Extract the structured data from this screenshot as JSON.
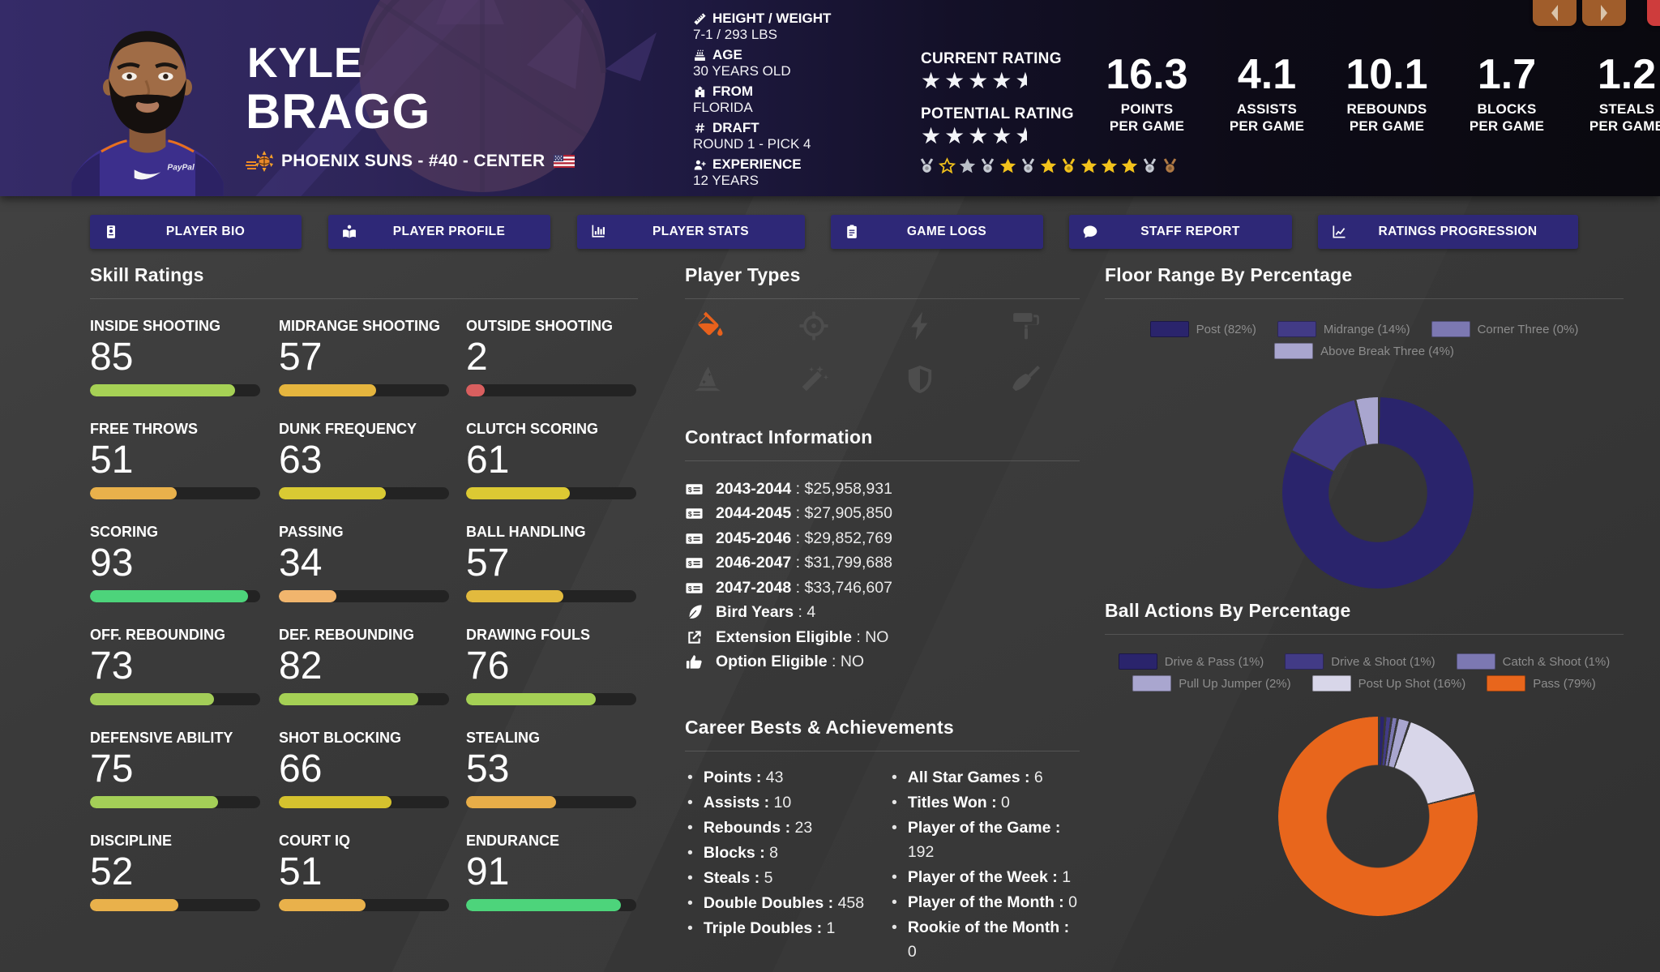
{
  "header": {
    "first_name": "KYLE",
    "last_name": "BRAGG",
    "team_line": "PHOENIX SUNS - #40 - CENTER",
    "bio_items": [
      {
        "icon": "ruler-icon",
        "label": "HEIGHT / WEIGHT",
        "value": "7-1 / 293 LBS"
      },
      {
        "icon": "birthday-cake-icon",
        "label": "AGE",
        "value": "30 YEARS OLD"
      },
      {
        "icon": "school-icon",
        "label": "FROM",
        "value": "FLORIDA"
      },
      {
        "icon": "hashtag-icon",
        "label": "DRAFT",
        "value": "ROUND 1 - PICK 4"
      },
      {
        "icon": "user-plus-icon",
        "label": "EXPERIENCE",
        "value": "12 YEARS"
      }
    ],
    "current_rating_label": "CURRENT RATING",
    "current_rating_stars": 4.5,
    "potential_rating_label": "POTENTIAL RATING",
    "potential_rating_stars": 4.5,
    "awards": [
      {
        "type": "medal",
        "tone": "silver"
      },
      {
        "type": "star-outline",
        "tone": "gold"
      },
      {
        "type": "star",
        "tone": "silver"
      },
      {
        "type": "medal",
        "tone": "silver"
      },
      {
        "type": "star",
        "tone": "gold"
      },
      {
        "type": "medal",
        "tone": "silver"
      },
      {
        "type": "star",
        "tone": "gold"
      },
      {
        "type": "medal",
        "tone": "gold"
      },
      {
        "type": "star",
        "tone": "gold"
      },
      {
        "type": "star",
        "tone": "gold"
      },
      {
        "type": "star",
        "tone": "gold"
      },
      {
        "type": "medal",
        "tone": "silver"
      },
      {
        "type": "medal",
        "tone": "bronze"
      }
    ],
    "stats": [
      {
        "value": "16.3",
        "label1": "POINTS",
        "label2": "PER GAME"
      },
      {
        "value": "4.1",
        "label1": "ASSISTS",
        "label2": "PER GAME"
      },
      {
        "value": "10.1",
        "label1": "REBOUNDS",
        "label2": "PER GAME"
      },
      {
        "value": "1.7",
        "label1": "BLOCKS",
        "label2": "PER GAME"
      },
      {
        "value": "1.2",
        "label1": "STEALS",
        "label2": "PER GAME"
      }
    ]
  },
  "nav_buttons": [
    {
      "icon": "id-card-icon",
      "label": "PLAYER BIO"
    },
    {
      "icon": "book-reader-icon",
      "label": "PLAYER PROFILE"
    },
    {
      "icon": "bar-chart-icon",
      "label": "PLAYER STATS"
    },
    {
      "icon": "clipboard-icon",
      "label": "GAME LOGS"
    },
    {
      "icon": "comment-icon",
      "label": "STAFF REPORT"
    },
    {
      "icon": "line-chart-icon",
      "label": "RATINGS PROGRESSION"
    }
  ],
  "skills": {
    "title": "Skill Ratings",
    "items": [
      {
        "label": "INSIDE SHOOTING",
        "value": 85,
        "color": "#a6d155"
      },
      {
        "label": "MIDRANGE SHOOTING",
        "value": 57,
        "color": "#e5b53e"
      },
      {
        "label": "OUTSIDE SHOOTING",
        "value": 2,
        "color": "#d95f5f"
      },
      {
        "label": "FREE THROWS",
        "value": 51,
        "color": "#e9b14b"
      },
      {
        "label": "DUNK FREQUENCY",
        "value": 63,
        "color": "#d9ca33"
      },
      {
        "label": "CLUTCH SCORING",
        "value": 61,
        "color": "#dcc933"
      },
      {
        "label": "SCORING",
        "value": 93,
        "color": "#4dd47b"
      },
      {
        "label": "PASSING",
        "value": 34,
        "color": "#f1b56d"
      },
      {
        "label": "BALL HANDLING",
        "value": 57,
        "color": "#e2ba3e"
      },
      {
        "label": "OFF. REBOUNDING",
        "value": 73,
        "color": "#a3cd58"
      },
      {
        "label": "DEF. REBOUNDING",
        "value": 82,
        "color": "#a5d055"
      },
      {
        "label": "DRAWING FOULS",
        "value": 76,
        "color": "#a5d055"
      },
      {
        "label": "DEFENSIVE ABILITY",
        "value": 75,
        "color": "#a4cf57"
      },
      {
        "label": "SHOT BLOCKING",
        "value": 66,
        "color": "#d5c22e"
      },
      {
        "label": "STEALING",
        "value": 53,
        "color": "#e7ad48"
      },
      {
        "label": "DISCIPLINE",
        "value": 52,
        "color": "#e9b14b"
      },
      {
        "label": "COURT IQ",
        "value": 51,
        "color": "#e9b14b"
      },
      {
        "label": "ENDURANCE",
        "value": 91,
        "color": "#4dd47b"
      }
    ]
  },
  "player_types": {
    "title": "Player Types",
    "icons": [
      {
        "name": "fill-drip-icon",
        "active": true
      },
      {
        "name": "crosshairs-icon",
        "active": false
      },
      {
        "name": "bolt-icon",
        "active": false
      },
      {
        "name": "paint-roller-icon",
        "active": false
      },
      {
        "name": "wizard-hat-icon",
        "active": false
      },
      {
        "name": "magic-wand-icon",
        "active": false
      },
      {
        "name": "shield-icon",
        "active": false
      },
      {
        "name": "broom-icon",
        "active": false
      }
    ]
  },
  "contract": {
    "title": "Contract Information",
    "items": [
      {
        "icon": "money-check-icon",
        "label": "2043-2044",
        "value": "$25,958,931"
      },
      {
        "icon": "money-check-icon",
        "label": "2044-2045",
        "value": "$27,905,850"
      },
      {
        "icon": "money-check-icon",
        "label": "2045-2046",
        "value": "$29,852,769"
      },
      {
        "icon": "money-check-icon",
        "label": "2046-2047",
        "value": "$31,799,688"
      },
      {
        "icon": "money-check-icon",
        "label": "2047-2048",
        "value": "$33,746,607"
      },
      {
        "icon": "feather-icon",
        "label": "Bird Years",
        "value": "4"
      },
      {
        "icon": "external-link-icon",
        "label": "Extension Eligible",
        "value": "NO"
      },
      {
        "icon": "thumbs-up-icon",
        "label": "Option Eligible",
        "value": "NO"
      }
    ]
  },
  "career": {
    "title": "Career Bests & Achievements",
    "left": [
      {
        "label": "Points",
        "value": "43"
      },
      {
        "label": "Assists",
        "value": "10"
      },
      {
        "label": "Rebounds",
        "value": "23"
      },
      {
        "label": "Blocks",
        "value": "8"
      },
      {
        "label": "Steals",
        "value": "5"
      },
      {
        "label": "Double Doubles",
        "value": "458"
      },
      {
        "label": "Triple Doubles",
        "value": "1"
      }
    ],
    "right": [
      {
        "label": "All Star Games",
        "value": "6"
      },
      {
        "label": "Titles Won",
        "value": "0"
      },
      {
        "label": "Player of the Game",
        "value": "192"
      },
      {
        "label": "Player of the Week",
        "value": "1"
      },
      {
        "label": "Player of the Month",
        "value": "0"
      },
      {
        "label": "Rookie of the Month",
        "value": "0"
      }
    ]
  },
  "chart_data": [
    {
      "type": "pie",
      "donut": true,
      "title": "Floor Range By Percentage",
      "labels": [
        "Post",
        "Midrange",
        "Corner Three",
        "Above Break Three"
      ],
      "values": [
        82,
        14,
        0,
        4
      ],
      "colors": [
        "#2a246c",
        "#423b86",
        "#7c78b2",
        "#a9a6cf"
      ],
      "legend_position": "top"
    },
    {
      "type": "pie",
      "donut": true,
      "title": "Ball Actions By Percentage",
      "labels": [
        "Drive & Pass",
        "Drive & Shoot",
        "Catch & Shoot",
        "Pull Up Jumper",
        "Post Up Shot",
        "Pass"
      ],
      "values": [
        1,
        1,
        1,
        2,
        16,
        79
      ],
      "colors": [
        "#2a246c",
        "#423b86",
        "#7c78b2",
        "#a9a6cf",
        "#d8d6e9",
        "#e8661c"
      ],
      "legend_position": "top"
    }
  ]
}
